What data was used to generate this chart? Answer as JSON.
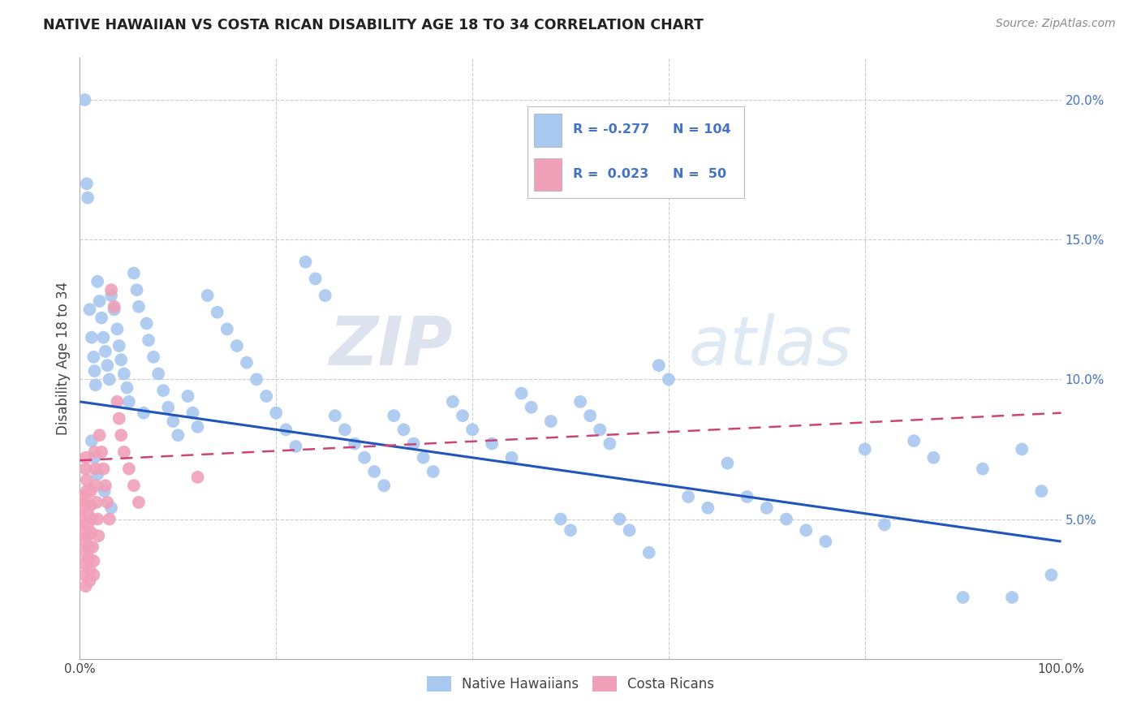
{
  "title": "NATIVE HAWAIIAN VS COSTA RICAN DISABILITY AGE 18 TO 34 CORRELATION CHART",
  "source": "Source: ZipAtlas.com",
  "ylabel": "Disability Age 18 to 34",
  "xlim": [
    0,
    1.0
  ],
  "ylim": [
    0,
    0.215
  ],
  "blue_R": "-0.277",
  "blue_N": "104",
  "pink_R": "0.023",
  "pink_N": "50",
  "blue_color": "#a8c8f0",
  "pink_color": "#f0a0b8",
  "blue_line_color": "#2255bb",
  "pink_line_color": "#cc4477",
  "watermark_zip": "ZIP",
  "watermark_atlas": "atlas",
  "grid_color": "#cccccc",
  "blue_line_x0": 0.0,
  "blue_line_y0": 0.092,
  "blue_line_x1": 1.0,
  "blue_line_y1": 0.042,
  "pink_line_x0": 0.0,
  "pink_line_y0": 0.071,
  "pink_line_x1": 1.0,
  "pink_line_y1": 0.088,
  "blue_x": [
    0.005,
    0.007,
    0.008,
    0.01,
    0.012,
    0.014,
    0.015,
    0.016,
    0.018,
    0.02,
    0.022,
    0.024,
    0.026,
    0.028,
    0.03,
    0.032,
    0.035,
    0.038,
    0.04,
    0.042,
    0.045,
    0.048,
    0.05,
    0.055,
    0.058,
    0.06,
    0.065,
    0.068,
    0.07,
    0.075,
    0.08,
    0.085,
    0.09,
    0.095,
    0.1,
    0.11,
    0.115,
    0.12,
    0.13,
    0.14,
    0.15,
    0.16,
    0.17,
    0.18,
    0.19,
    0.2,
    0.21,
    0.22,
    0.23,
    0.24,
    0.25,
    0.26,
    0.27,
    0.28,
    0.29,
    0.3,
    0.31,
    0.32,
    0.33,
    0.34,
    0.35,
    0.36,
    0.38,
    0.39,
    0.4,
    0.42,
    0.44,
    0.45,
    0.46,
    0.48,
    0.49,
    0.5,
    0.51,
    0.52,
    0.53,
    0.54,
    0.55,
    0.56,
    0.58,
    0.59,
    0.6,
    0.62,
    0.64,
    0.66,
    0.68,
    0.7,
    0.72,
    0.74,
    0.76,
    0.8,
    0.82,
    0.85,
    0.87,
    0.9,
    0.92,
    0.95,
    0.96,
    0.98,
    0.99,
    0.012,
    0.015,
    0.018,
    0.025,
    0.032
  ],
  "blue_y": [
    0.2,
    0.17,
    0.165,
    0.125,
    0.115,
    0.108,
    0.103,
    0.098,
    0.135,
    0.128,
    0.122,
    0.115,
    0.11,
    0.105,
    0.1,
    0.13,
    0.125,
    0.118,
    0.112,
    0.107,
    0.102,
    0.097,
    0.092,
    0.138,
    0.132,
    0.126,
    0.088,
    0.12,
    0.114,
    0.108,
    0.102,
    0.096,
    0.09,
    0.085,
    0.08,
    0.094,
    0.088,
    0.083,
    0.13,
    0.124,
    0.118,
    0.112,
    0.106,
    0.1,
    0.094,
    0.088,
    0.082,
    0.076,
    0.142,
    0.136,
    0.13,
    0.087,
    0.082,
    0.077,
    0.072,
    0.067,
    0.062,
    0.087,
    0.082,
    0.077,
    0.072,
    0.067,
    0.092,
    0.087,
    0.082,
    0.077,
    0.072,
    0.095,
    0.09,
    0.085,
    0.05,
    0.046,
    0.092,
    0.087,
    0.082,
    0.077,
    0.05,
    0.046,
    0.038,
    0.105,
    0.1,
    0.058,
    0.054,
    0.07,
    0.058,
    0.054,
    0.05,
    0.046,
    0.042,
    0.075,
    0.048,
    0.078,
    0.072,
    0.022,
    0.068,
    0.022,
    0.075,
    0.06,
    0.03,
    0.078,
    0.072,
    0.066,
    0.06,
    0.054
  ],
  "pink_x": [
    0.002,
    0.003,
    0.003,
    0.004,
    0.004,
    0.005,
    0.005,
    0.005,
    0.006,
    0.006,
    0.006,
    0.007,
    0.007,
    0.007,
    0.008,
    0.008,
    0.008,
    0.009,
    0.009,
    0.01,
    0.01,
    0.011,
    0.011,
    0.012,
    0.012,
    0.013,
    0.014,
    0.014,
    0.015,
    0.016,
    0.016,
    0.017,
    0.018,
    0.019,
    0.02,
    0.022,
    0.024,
    0.026,
    0.028,
    0.03,
    0.032,
    0.035,
    0.038,
    0.04,
    0.042,
    0.045,
    0.05,
    0.055,
    0.06,
    0.12
  ],
  "pink_y": [
    0.058,
    0.054,
    0.05,
    0.046,
    0.042,
    0.038,
    0.034,
    0.03,
    0.026,
    0.072,
    0.068,
    0.064,
    0.06,
    0.056,
    0.052,
    0.048,
    0.044,
    0.04,
    0.036,
    0.032,
    0.028,
    0.06,
    0.055,
    0.05,
    0.045,
    0.04,
    0.035,
    0.03,
    0.074,
    0.068,
    0.062,
    0.056,
    0.05,
    0.044,
    0.08,
    0.074,
    0.068,
    0.062,
    0.056,
    0.05,
    0.132,
    0.126,
    0.092,
    0.086,
    0.08,
    0.074,
    0.068,
    0.062,
    0.056,
    0.065
  ]
}
